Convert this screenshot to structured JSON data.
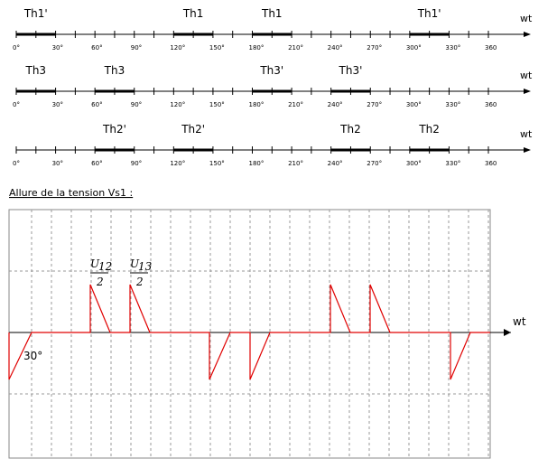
{
  "timelines": [
    {
      "axis_label": "wt",
      "segments": [
        "Th1'",
        "Th1",
        "Th1",
        "Th1'"
      ]
    },
    {
      "axis_label": "wt",
      "segments": [
        "Th3",
        "Th3",
        "Th3'",
        "Th3'"
      ]
    },
    {
      "axis_label": "wt",
      "segments": [
        "Th2'",
        "Th2'",
        "Th2",
        "Th2"
      ]
    }
  ],
  "tick_labels": [
    "0°",
    "30°",
    "60°",
    "90°",
    "120°",
    "150°",
    "180°",
    "210°",
    "240°",
    "270°",
    "300°",
    "330°",
    "360"
  ],
  "waveform": {
    "title": "Allure de la tension Vs1 :",
    "axis_label": "wt",
    "angle_label": "30°",
    "fractions": [
      {
        "symbol": "U",
        "subscript": "12",
        "denominator": "2"
      },
      {
        "symbol": "U",
        "subscript": "13",
        "denominator": "2"
      }
    ]
  }
}
